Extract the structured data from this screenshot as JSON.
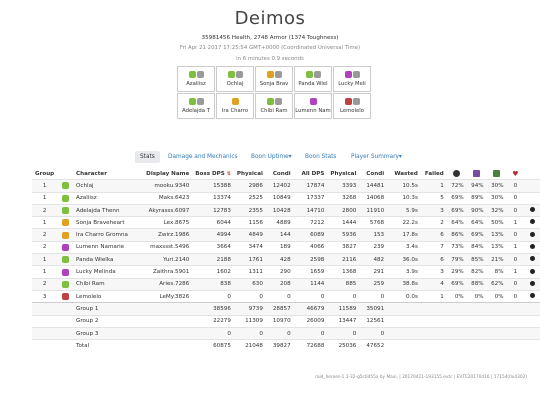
{
  "header": {
    "title": "Deimos",
    "stats": "35981456 Health, 2748 Armor (1374 Toughness)",
    "date": "Fri Apr 21 2017 17:25:54 GMT+0000 (Coordinated Universal Time)",
    "duration": "in 6 minutes 0.9 seconds"
  },
  "party": [
    {
      "name": "Azaliisz",
      "icons": [
        "#7fbf3f",
        "#9a9a9a"
      ]
    },
    {
      "name": "Ochlaj",
      "icons": [
        "#7fbf3f",
        "#9a9a9a"
      ]
    },
    {
      "name": "Sonja Brav",
      "icons": [
        "#e0a020",
        "#9a9a9a"
      ]
    },
    {
      "name": "Panda Wiel",
      "icons": [
        "#7fbf3f",
        "#9a9a9a"
      ]
    },
    {
      "name": "Lucky Meli",
      "icons": [
        "#b040c0",
        "#9a9a9a"
      ]
    },
    {
      "name": "Adelajda T",
      "icons": [
        "#7fbf3f",
        "#9a9a9a"
      ]
    },
    {
      "name": "Ira Charro",
      "icons": [
        "#e0a020"
      ]
    },
    {
      "name": "Chibi Ram",
      "icons": [
        "#7fbf3f",
        "#9a9a9a"
      ]
    },
    {
      "name": "Lumenn Nam",
      "icons": [
        "#b040c0"
      ]
    },
    {
      "name": "Lemolelo",
      "icons": [
        "#c04040",
        "#9a9a9a"
      ]
    }
  ],
  "nav": {
    "stats": "Stats",
    "damage": "Damage and Mechanics",
    "boon_uptime": "Boon Uptime▾",
    "boon_stats": "Boon Stats",
    "player_summary": "Player Summary▾"
  },
  "columns": [
    "Group",
    "Character",
    "Display Name",
    "Boss DPS",
    "Physical",
    "Condi",
    "All DPS",
    "Physical",
    "Condi",
    "Wasted",
    "Failed"
  ],
  "header_icons": [
    "#7a4aa0",
    "#506080",
    "#4a8040",
    "#b03030"
  ],
  "rows": [
    {
      "group": "1",
      "icon": "#7fbf3f",
      "character": "Ochlaj",
      "display": "mooku.9340",
      "boss_dps": "15388",
      "boss_phys": "2986",
      "boss_condi": "12402",
      "all_dps": "17874",
      "all_phys": "3393",
      "all_condi": "14481",
      "wasted": "10.5s",
      "failed": "1",
      "p1": "72%",
      "p2": "94%",
      "p3": "30%",
      "p4": "0",
      "dead": false
    },
    {
      "group": "1",
      "icon": "#7fbf3f",
      "character": "Azaliisz",
      "display": "Maks.6423",
      "boss_dps": "13374",
      "boss_phys": "2525",
      "boss_condi": "10849",
      "all_dps": "17337",
      "all_phys": "3268",
      "all_condi": "14068",
      "wasted": "10.3s",
      "failed": "5",
      "p1": "69%",
      "p2": "89%",
      "p3": "30%",
      "p4": "0",
      "dead": false
    },
    {
      "group": "2",
      "icon": "#7fbf3f",
      "character": "Adelajda Thenn",
      "display": "Akyrasss.6097",
      "boss_dps": "12783",
      "boss_phys": "2355",
      "boss_condi": "10428",
      "all_dps": "14710",
      "all_phys": "2800",
      "all_condi": "11910",
      "wasted": "5.9s",
      "failed": "3",
      "p1": "69%",
      "p2": "90%",
      "p3": "32%",
      "p4": "0",
      "dead": true
    },
    {
      "group": "1",
      "icon": "#e0a020",
      "character": "Sonja Braveheart",
      "display": "Lex.8675",
      "boss_dps": "6044",
      "boss_phys": "1156",
      "boss_condi": "4889",
      "all_dps": "7212",
      "all_phys": "1444",
      "all_condi": "5768",
      "wasted": "22.2s",
      "failed": "2",
      "p1": "64%",
      "p2": "64%",
      "p3": "50%",
      "p4": "1",
      "dead": true
    },
    {
      "group": "2",
      "icon": "#e0a020",
      "character": "Ira Charro Gromna",
      "display": "Zwirz.1986",
      "boss_dps": "4994",
      "boss_phys": "4849",
      "boss_condi": "144",
      "all_dps": "6089",
      "all_phys": "5936",
      "all_condi": "153",
      "wasted": "17.8s",
      "failed": "6",
      "p1": "86%",
      "p2": "69%",
      "p3": "13%",
      "p4": "0",
      "dead": true
    },
    {
      "group": "2",
      "icon": "#b040c0",
      "character": "Lumenn Namarie",
      "display": "maxssst.5496",
      "boss_dps": "3664",
      "boss_phys": "3474",
      "boss_condi": "189",
      "all_dps": "4066",
      "all_phys": "3827",
      "all_condi": "239",
      "wasted": "3.4s",
      "failed": "7",
      "p1": "73%",
      "p2": "84%",
      "p3": "13%",
      "p4": "1",
      "dead": true
    },
    {
      "group": "1",
      "icon": "#7fbf3f",
      "character": "Panda Wielka",
      "display": "Yuri.2140",
      "boss_dps": "2188",
      "boss_phys": "1761",
      "boss_condi": "428",
      "all_dps": "2598",
      "all_phys": "2116",
      "all_condi": "482",
      "wasted": "36.0s",
      "failed": "6",
      "p1": "79%",
      "p2": "85%",
      "p3": "21%",
      "p4": "0",
      "dead": true
    },
    {
      "group": "1",
      "icon": "#b040c0",
      "character": "Lucky Melinda",
      "display": "Zaithra.5901",
      "boss_dps": "1602",
      "boss_phys": "1311",
      "boss_condi": "290",
      "all_dps": "1659",
      "all_phys": "1368",
      "all_condi": "291",
      "wasted": "3.9s",
      "failed": "3",
      "p1": "29%",
      "p2": "82%",
      "p3": "8%",
      "p4": "1",
      "dead": true
    },
    {
      "group": "2",
      "icon": "#7fbf3f",
      "character": "Chibi Ram",
      "display": "Aries.7286",
      "boss_dps": "838",
      "boss_phys": "630",
      "boss_condi": "208",
      "all_dps": "1144",
      "all_phys": "885",
      "all_condi": "259",
      "wasted": "38.8s",
      "failed": "4",
      "p1": "69%",
      "p2": "88%",
      "p3": "62%",
      "p4": "0",
      "dead": true
    },
    {
      "group": "3",
      "icon": "#c04040",
      "character": "Lemolelo",
      "display": "LeMy.3826",
      "boss_dps": "0",
      "boss_phys": "0",
      "boss_condi": "0",
      "all_dps": "0",
      "all_phys": "0",
      "all_condi": "0",
      "wasted": "0.0s",
      "failed": "1",
      "p1": "0%",
      "p2": "0%",
      "p3": "0%",
      "p4": "0",
      "dead": true
    }
  ],
  "groups": [
    {
      "label": "Group 1",
      "boss_dps": "38596",
      "boss_phys": "9739",
      "boss_condi": "28857",
      "all_dps": "46679",
      "all_phys": "11589",
      "all_condi": "35091"
    },
    {
      "label": "Group 2",
      "boss_dps": "22279",
      "boss_phys": "11309",
      "boss_condi": "10970",
      "all_dps": "26009",
      "all_phys": "13447",
      "all_condi": "12561"
    },
    {
      "label": "Group 3",
      "boss_dps": "0",
      "boss_phys": "0",
      "boss_condi": "0",
      "all_dps": "0",
      "all_phys": "0",
      "all_condi": "0"
    },
    {
      "label": "Total",
      "boss_dps": "60875",
      "boss_phys": "21048",
      "boss_condi": "39827",
      "all_dps": "72688",
      "all_phys": "25036",
      "all_condi": "47652"
    }
  ],
  "footer": "raid_heroes-1.1-32-g5c0d55a by Maxi, | 20170421-193155.evtc | EVTC20170416 | 17154(0x4302)"
}
